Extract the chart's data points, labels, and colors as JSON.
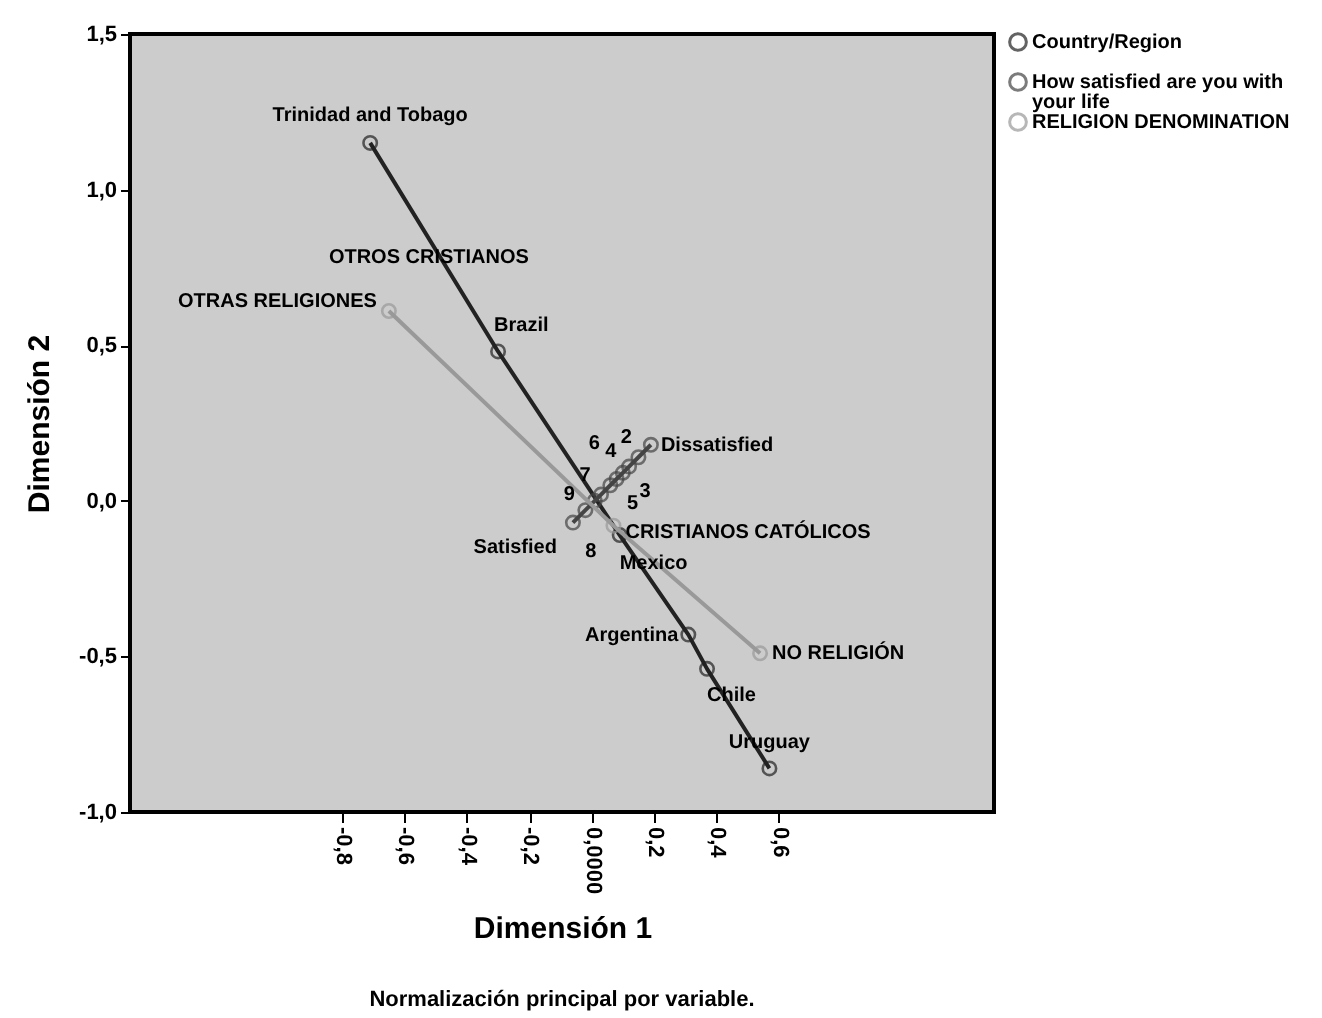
{
  "chart_data": {
    "type": "line",
    "xlabel": "Dimensión 1",
    "ylabel": "Dimensión 2",
    "xlim": [
      -1.48,
      1.29
    ],
    "ylim": [
      -1.0,
      1.5
    ],
    "xticks": [
      {
        "value": -0.8,
        "label": "-0,8"
      },
      {
        "value": -0.6,
        "label": "-0,6"
      },
      {
        "value": -0.4,
        "label": "-0,4"
      },
      {
        "value": -0.2,
        "label": "-0,2"
      },
      {
        "value": 0,
        "label": "0,0000"
      },
      {
        "value": 0.2,
        "label": "0,2"
      },
      {
        "value": 0.4,
        "label": "0,4"
      },
      {
        "value": 0.6,
        "label": "0,6"
      }
    ],
    "yticks": [
      {
        "value": -1.0,
        "label": "-1,0"
      },
      {
        "value": -0.5,
        "label": "-0,5"
      },
      {
        "value": 0,
        "label": "0,0"
      },
      {
        "value": 0.5,
        "label": "0,5"
      },
      {
        "value": 1.0,
        "label": "1,0"
      },
      {
        "value": 1.5,
        "label": "1,5"
      }
    ],
    "grid": false,
    "marker": "circle",
    "legend": "top right",
    "series": [
      {
        "name": "Country/Region",
        "color": "#222222",
        "x": [
          -0.71,
          -0.3,
          0.09,
          0.31,
          0.37,
          0.57
        ],
        "values": [
          1.15,
          0.48,
          -0.11,
          -0.43,
          -0.54,
          -0.86
        ]
      },
      {
        "name": "How satisfied are you with your life",
        "color": "#444444",
        "x": [
          0.19,
          0.15,
          0.12,
          0.1,
          0.08,
          0.06,
          0.03,
          0.01,
          -0.02,
          -0.06
        ],
        "values": [
          0.18,
          0.14,
          0.11,
          0.09,
          0.07,
          0.05,
          0.02,
          0.0,
          -0.03,
          -0.07
        ]
      },
      {
        "name": "RELIGION DENOMINATION",
        "color": "#999999",
        "x": [
          -0.65,
          0.07,
          0.54
        ],
        "values": [
          0.61,
          -0.08,
          -0.49
        ]
      }
    ],
    "annotations": [
      {
        "text": "Trinidad and Tobago",
        "x": -0.71,
        "y": 1.15
      },
      {
        "text": "Brazil",
        "x": -0.3,
        "y": 0.48
      },
      {
        "text": "Mexico",
        "x": 0.09,
        "y": -0.11
      },
      {
        "text": "Argentina",
        "x": 0.31,
        "y": -0.43
      },
      {
        "text": "Chile",
        "x": 0.37,
        "y": -0.54
      },
      {
        "text": "Uruguay",
        "x": 0.57,
        "y": -0.86
      },
      {
        "text": "OTROS CRISTIANOS",
        "x": -0.65,
        "y": 0.61
      },
      {
        "text": "OTRAS RELIGIONES",
        "x": -0.65,
        "y": 0.61
      },
      {
        "text": "CRISTIANOS CATÓLICOS",
        "x": 0.07,
        "y": -0.08
      },
      {
        "text": "NO RELIGIÓN",
        "x": 0.54,
        "y": -0.49
      },
      {
        "text": "Dissatisfied",
        "x": 0.19,
        "y": 0.18
      },
      {
        "text": "Satisfied",
        "x": -0.06,
        "y": -0.07
      },
      {
        "text": "2",
        "x": 0.15,
        "y": 0.14
      },
      {
        "text": "3",
        "x": 0.12,
        "y": 0.11
      },
      {
        "text": "4",
        "x": 0.1,
        "y": 0.09
      },
      {
        "text": "5",
        "x": 0.08,
        "y": 0.07
      },
      {
        "text": "6",
        "x": 0.06,
        "y": 0.05
      },
      {
        "text": "7",
        "x": 0.03,
        "y": 0.02
      },
      {
        "text": "8",
        "x": 0.01,
        "y": 0.0
      },
      {
        "text": "9",
        "x": -0.02,
        "y": -0.03
      },
      "Normalización principal por variable."
    ]
  }
}
